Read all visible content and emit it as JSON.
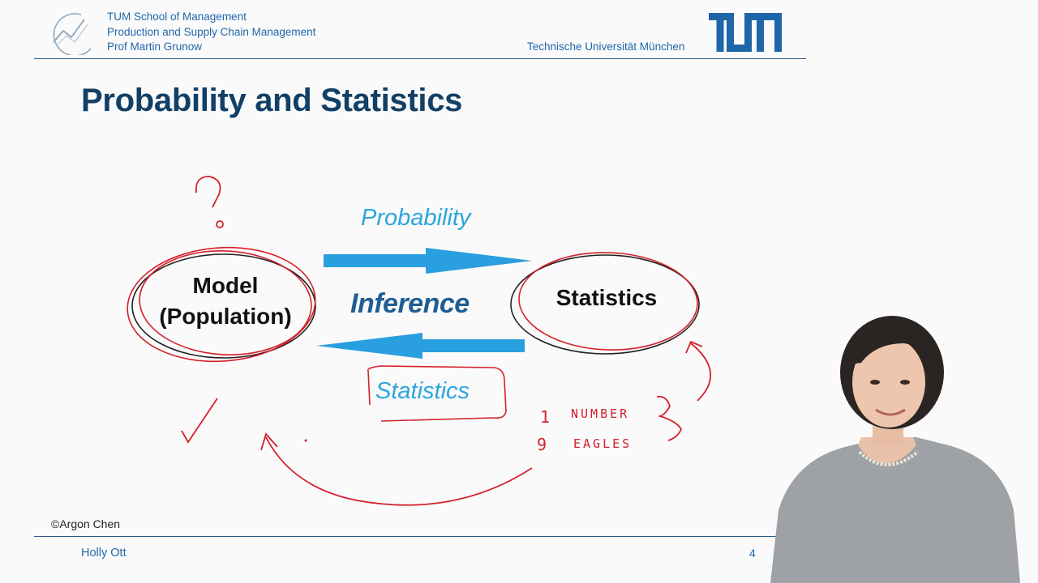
{
  "header": {
    "affiliation": [
      "TUM School of Management",
      "Production and Supply Chain Management",
      "Prof Martin Grunow"
    ],
    "university": "Technische Universität München",
    "logo_text": "TUM"
  },
  "slide": {
    "title": "Probability and Statistics",
    "diagram": {
      "model_line1": "Model",
      "model_line2": "(Population)",
      "statistics_node": "Statistics",
      "probability_label": "Probability",
      "inference_label": "Inference",
      "statistics_label": "Statistics"
    },
    "annotations": {
      "question_mark": "?",
      "count_1": "1",
      "word_number": "NUMBER",
      "count_9": "9",
      "word_eagles": "EAGLES"
    }
  },
  "footer": {
    "copyright": "©Argon Chen",
    "presenter": "Holly Ott",
    "page": "4"
  },
  "colors": {
    "tum_blue": "#1f66a8",
    "title_navy": "#123f66",
    "arrow_blue": "#2a9fe0",
    "label_cyan": "#2ba6dd",
    "ink_red": "#d4202a"
  },
  "icons": [
    "school-logo-icon",
    "tum-logo-icon",
    "checkmark-icon",
    "question-mark-icon"
  ]
}
